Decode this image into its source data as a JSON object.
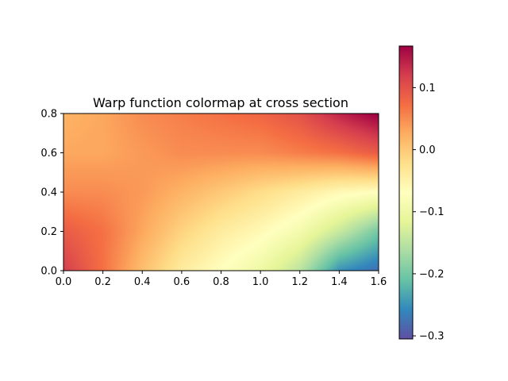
{
  "chart_data": {
    "type": "heatmap",
    "title": "Warp function colormap at cross section",
    "xlabel": "",
    "ylabel": "",
    "xlim": [
      0.0,
      1.6
    ],
    "ylim": [
      0.0,
      0.8
    ],
    "x_ticks": [
      "0.0",
      "0.2",
      "0.4",
      "0.6",
      "0.8",
      "1.0",
      "1.2",
      "1.4",
      "1.6"
    ],
    "y_ticks": [
      "0.0",
      "0.2",
      "0.4",
      "0.6",
      "0.8"
    ],
    "colorbar": {
      "colormap": "Spectral_r",
      "range": [
        -0.305,
        0.167
      ],
      "ticks": [
        "0.1",
        "0.0",
        "−0.1",
        "−0.2",
        "−0.3"
      ],
      "tick_values": [
        0.1,
        0.0,
        -0.1,
        -0.2,
        -0.3
      ]
    },
    "grid": false,
    "sampled_values": {
      "x": [
        0.0,
        0.2,
        0.4,
        0.6,
        0.8,
        1.0,
        1.2,
        1.4,
        1.6
      ],
      "y": [
        0.0,
        0.2,
        0.4,
        0.6,
        0.8
      ],
      "z": [
        [
          0.12,
          0.07,
          0.01,
          -0.04,
          -0.07,
          -0.1,
          -0.15,
          -0.25,
          -0.28
        ],
        [
          0.09,
          0.07,
          0.03,
          -0.01,
          -0.04,
          -0.06,
          -0.09,
          -0.14,
          -0.2
        ],
        [
          0.05,
          0.05,
          0.04,
          0.02,
          0.0,
          -0.02,
          -0.04,
          -0.06,
          -0.07
        ],
        [
          0.03,
          0.03,
          0.04,
          0.05,
          0.05,
          0.05,
          0.06,
          0.07,
          0.09
        ],
        [
          0.02,
          0.03,
          0.05,
          0.06,
          0.07,
          0.08,
          0.1,
          0.14,
          0.17
        ]
      ]
    }
  }
}
